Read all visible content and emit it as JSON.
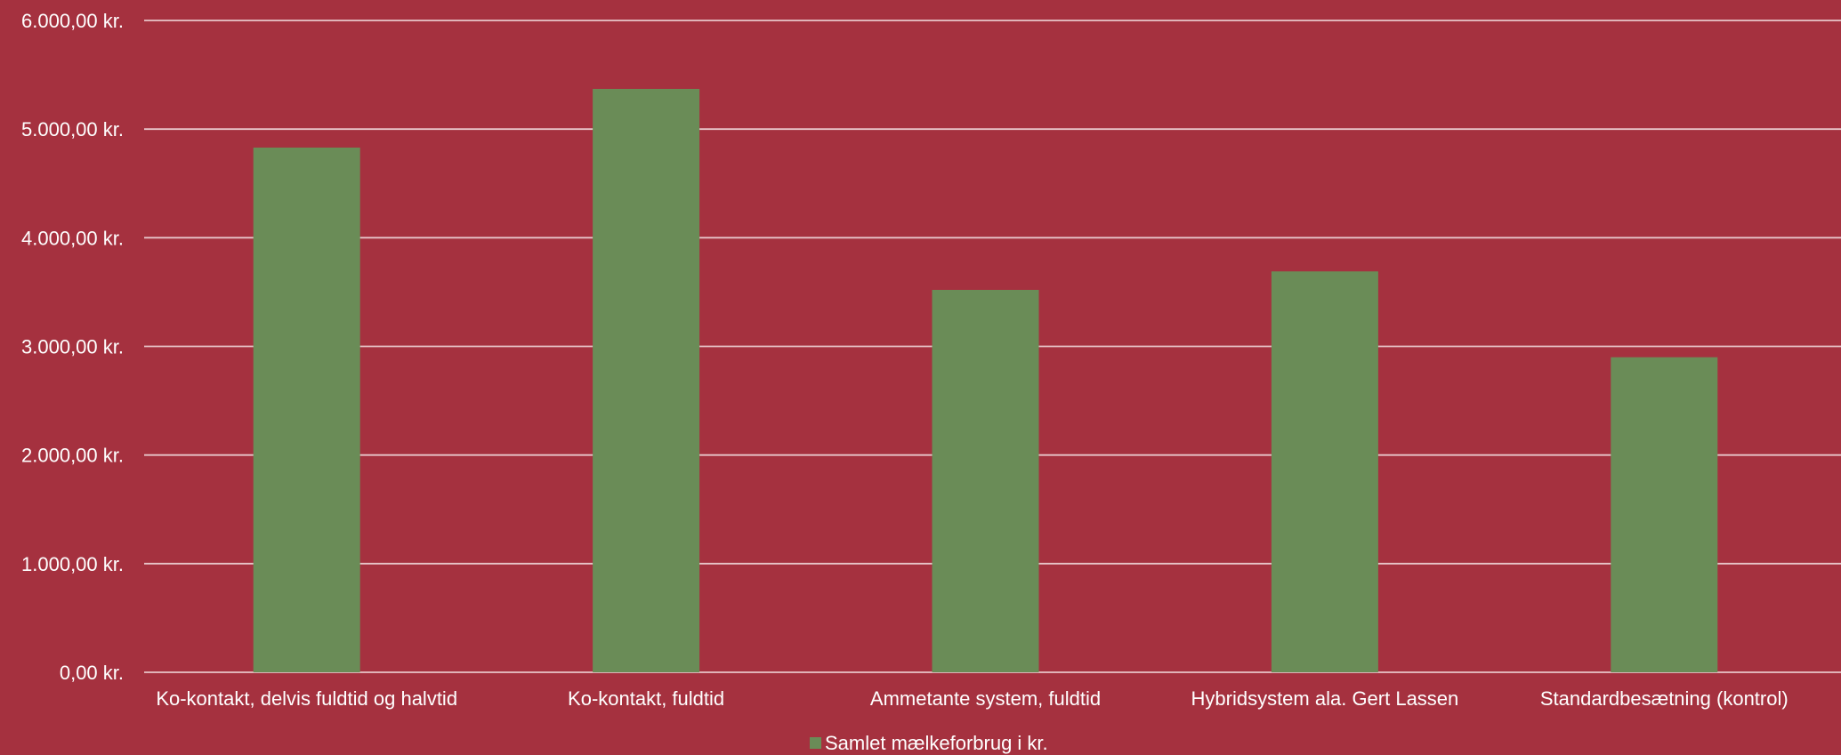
{
  "chart_data": {
    "type": "bar",
    "categories": [
      "Ko-kontakt, delvis fuldtid og halvtid",
      "Ko-kontakt, fuldtid",
      "Ammetante system, fuldtid",
      "Hybridsystem ala. Gert Lassen",
      "Standardbesætning (kontrol)"
    ],
    "series": [
      {
        "name": "Samlet mælkeforbrug i kr.",
        "values": [
          4830,
          5370,
          3520,
          3690,
          2900
        ]
      }
    ],
    "ylim": [
      0,
      6000
    ],
    "yticks": [
      0,
      1000,
      2000,
      3000,
      4000,
      5000,
      6000
    ],
    "ytick_labels": [
      "0,00 kr.",
      "1.000,00 kr.",
      "2.000,00 kr.",
      "3.000,00 kr.",
      "4.000,00 kr.",
      "5.000,00 kr.",
      "6.000,00 kr."
    ],
    "grid": true,
    "legend_position": "bottom",
    "colors": {
      "background": "#a5313f",
      "bar": "#6a8c57",
      "grid": "#e8c6ca",
      "text": "#ffffff"
    }
  }
}
